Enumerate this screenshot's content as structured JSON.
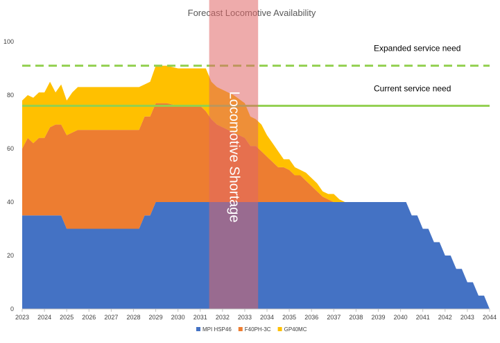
{
  "chart_data": {
    "type": "area",
    "stacked": true,
    "title": "Forecast Locomotive Availability",
    "xlabel": "",
    "ylabel": "",
    "xlim": [
      2023,
      2044
    ],
    "ylim": [
      0,
      100
    ],
    "yticks": [
      "0",
      "20",
      "40",
      "60",
      "80",
      "100"
    ],
    "xticks": [
      "2023",
      "2024",
      "2025",
      "2026",
      "2027",
      "2028",
      "2029",
      "2030",
      "2031",
      "2032",
      "2033",
      "2034",
      "2035",
      "2036",
      "2037",
      "2038",
      "2039",
      "2040",
      "2041",
      "2042",
      "2043",
      "2044"
    ],
    "x": [
      2023,
      2023.25,
      2023.5,
      2023.75,
      2024,
      2024.25,
      2024.5,
      2024.75,
      2025,
      2025.25,
      2025.5,
      2026,
      2027,
      2028,
      2028.25,
      2028.5,
      2028.75,
      2029,
      2029.5,
      2030,
      2030.5,
      2031,
      2031.25,
      2031.5,
      2031.75,
      2032,
      2032.5,
      2033,
      2033.25,
      2033.5,
      2033.75,
      2034,
      2034.25,
      2034.5,
      2034.75,
      2035,
      2035.25,
      2035.5,
      2035.75,
      2036,
      2036.25,
      2036.5,
      2036.75,
      2037,
      2037.25,
      2037.5,
      2038,
      2039,
      2040,
      2040.25,
      2040.5,
      2040.75,
      2041,
      2041.25,
      2041.5,
      2041.75,
      2042,
      2042.25,
      2042.5,
      2042.75,
      2043,
      2043.25,
      2043.5,
      2043.75,
      2044
    ],
    "series": [
      {
        "name": "MPI HSP46",
        "color": "#4472C4",
        "values": [
          35,
          35,
          35,
          35,
          35,
          35,
          35,
          35,
          30,
          30,
          30,
          30,
          30,
          30,
          30,
          35,
          35,
          40,
          40,
          40,
          40,
          40,
          40,
          40,
          40,
          40,
          40,
          40,
          40,
          40,
          40,
          40,
          40,
          40,
          40,
          40,
          40,
          40,
          40,
          40,
          40,
          40,
          40,
          40,
          40,
          40,
          40,
          40,
          40,
          40,
          35,
          35,
          30,
          30,
          25,
          25,
          20,
          20,
          15,
          15,
          10,
          10,
          5,
          5,
          0
        ]
      },
      {
        "name": "F40PH-3C",
        "color": "#ED7D31",
        "values": [
          25,
          29,
          27,
          29,
          29,
          33,
          34,
          34,
          35,
          36,
          37,
          37,
          37,
          37,
          37,
          37,
          37,
          37,
          37,
          36,
          36,
          36,
          34,
          31,
          29,
          28,
          26,
          24,
          21,
          21,
          19,
          17,
          15,
          13,
          13,
          12,
          10,
          10,
          8,
          6,
          4,
          2,
          1,
          0,
          0,
          0,
          0,
          0,
          0,
          0,
          0,
          0,
          0,
          0,
          0,
          0,
          0,
          0,
          0,
          0,
          0,
          0,
          0,
          0,
          0
        ]
      },
      {
        "name": "GP40MC",
        "color": "#FFC000",
        "values": [
          18,
          16,
          17,
          17,
          17,
          17,
          12,
          15,
          13,
          15,
          16,
          16,
          16,
          16,
          16,
          12,
          13,
          14,
          14,
          14,
          14,
          14,
          16,
          14,
          14,
          14,
          14,
          13,
          11,
          10,
          10,
          8,
          7,
          6,
          3,
          4,
          3,
          2,
          3,
          3,
          3,
          2,
          2,
          3,
          1,
          0,
          0,
          0,
          0,
          0,
          0,
          0,
          0,
          0,
          0,
          0,
          0,
          0,
          0,
          0,
          0,
          0,
          0,
          0,
          0
        ]
      }
    ],
    "reference_lines": [
      {
        "label": "Expanded service need",
        "value": 91,
        "style": "dashed",
        "color": "#92D050"
      },
      {
        "label": "Current service need",
        "value": 76,
        "style": "solid",
        "color": "#92D050"
      }
    ],
    "highlight_band": {
      "label": "Locomotive Shortage",
      "x_start": 2031.4,
      "x_end": 2033.6,
      "color": "#E06666"
    },
    "legend": {
      "position": "bottom"
    }
  }
}
